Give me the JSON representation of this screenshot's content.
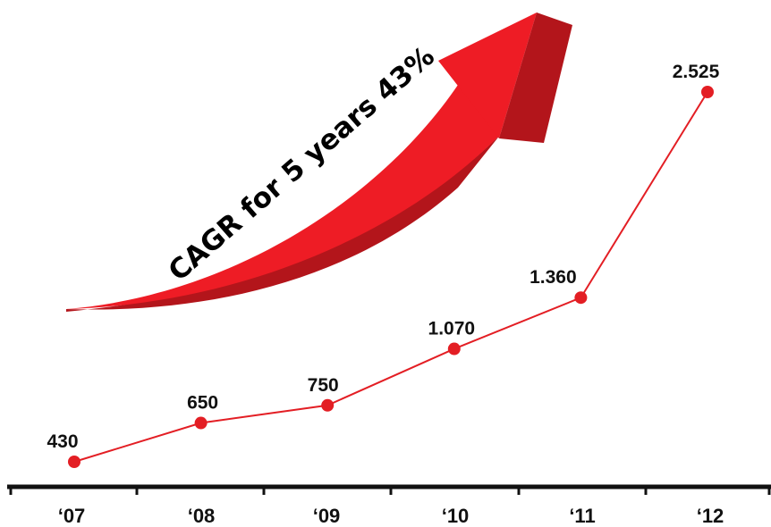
{
  "chart_data": {
    "type": "line",
    "categories": [
      "‘07",
      "‘08",
      "‘09",
      "‘10",
      "‘11",
      "‘12"
    ],
    "values": [
      430,
      650,
      750,
      1070,
      1360,
      2525
    ],
    "value_labels": [
      "430",
      "650",
      "750",
      "1.070",
      "1.360",
      "2.525"
    ],
    "title": "",
    "xlabel": "",
    "ylabel": "",
    "ylim": [
      0,
      2800
    ],
    "grid": false,
    "legend": "none",
    "annotation": "CAGR for 5 years  43%"
  },
  "colors": {
    "series": "#e31e24",
    "arrow_light": "#ee1c25",
    "arrow_dark": "#b3151b",
    "axis": "#111111"
  }
}
